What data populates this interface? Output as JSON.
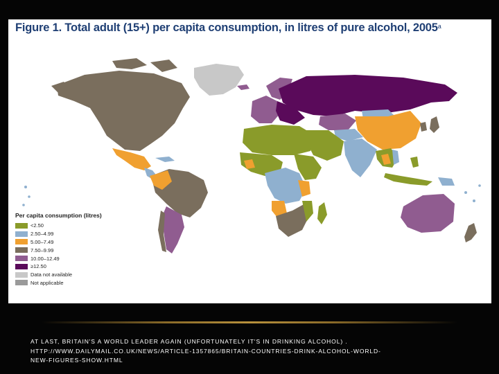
{
  "figure": {
    "title": "Figure 1. Total adult (15+) per capita consumption, in litres of pure alcohol, 2005",
    "title_footnote": "a"
  },
  "colors": {
    "lt_2_50": "#8a9b2a",
    "c2_50_4_99": "#8fb0cf",
    "c5_00_7_49": "#f0a030",
    "c7_50_9_99": "#7a6e5d",
    "c10_00_12_49": "#905c90",
    "ge_12_50": "#5a0a5a",
    "data_not_available": "#c8c8c8",
    "not_applicable": "#9a9a9a"
  },
  "legend": {
    "title": "Per capita consumption (litres)",
    "items": [
      {
        "label": "<2.50",
        "color": "#8a9b2a"
      },
      {
        "label": "2.50–4.99",
        "color": "#8fb0cf"
      },
      {
        "label": "5.00–7.49",
        "color": "#f0a030"
      },
      {
        "label": "7.50–9.99",
        "color": "#7a6e5d"
      },
      {
        "label": "10.00–12.49",
        "color": "#905c90"
      },
      {
        "label": "≥12.50",
        "color": "#5a0a5a"
      },
      {
        "label": "Data not available",
        "color": "#c8c8c8"
      },
      {
        "label": "Not applicable",
        "color": "#9a9a9a"
      }
    ]
  },
  "caption": {
    "line1": "AT LAST, BRITAIN'S A WORLD LEADER AGAIN (UNFORTUNATELY IT'S IN DRINKING ALCOHOL) .",
    "line2": "HTTP://WWW.DAILYMAIL.CO.UK/NEWS/ARTICLE-1357865/BRITAIN-COUNTRIES-DRINK-ALCOHOL-WORLD-",
    "line3": "NEW-FIGURES-SHOW.HTML"
  }
}
